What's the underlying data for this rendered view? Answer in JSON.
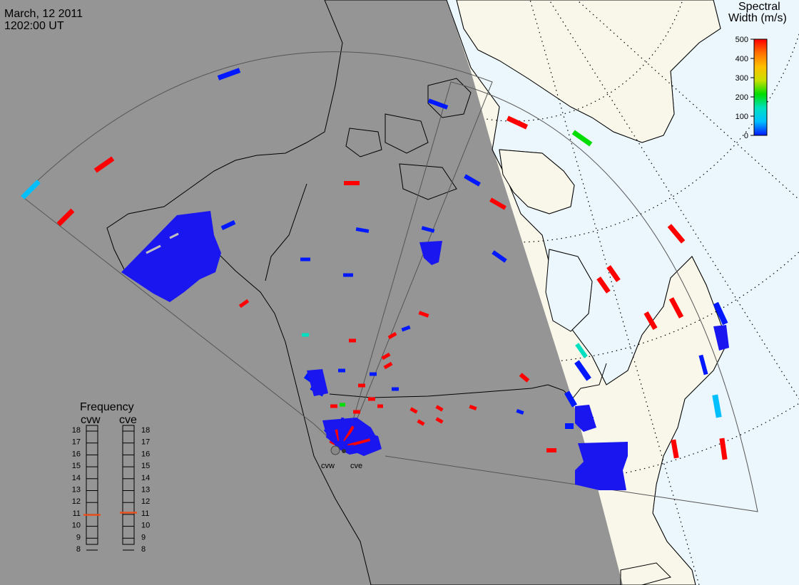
{
  "header": {
    "date": "March, 12 2011",
    "time": "1202:00 UT"
  },
  "colors": {
    "night": "#959595",
    "ocean_day": "#ecf6fd",
    "land_day": "#f9f7ea",
    "land_night": "#959595",
    "coast": "#000000",
    "fov": "#555555"
  },
  "radars": [
    {
      "code": "cvw",
      "name": "cvw"
    },
    {
      "code": "cve",
      "name": "cve"
    }
  ],
  "colorbar": {
    "title_line1": "Spectral",
    "title_line2": "Width (m/s)",
    "ticks": [
      "500",
      "400",
      "300",
      "200",
      "100",
      "0"
    ],
    "min": 0,
    "max": 500,
    "stops": [
      "#0018ff",
      "#00bfff",
      "#00e0c0",
      "#00dd00",
      "#c8e000",
      "#ffc000",
      "#ff7000",
      "#ff0000"
    ]
  },
  "frequency_panel": {
    "title": "Frequency",
    "columns": [
      {
        "label": "cvw",
        "current_mhz": 10.6
      },
      {
        "label": "cve",
        "current_mhz": 10.8
      }
    ],
    "ticks": [
      "18",
      "17",
      "16",
      "15",
      "14",
      "13",
      "12",
      "11",
      "10",
      "9",
      "8"
    ],
    "min": 8,
    "max": 18,
    "marker_color": "#e8501e"
  }
}
